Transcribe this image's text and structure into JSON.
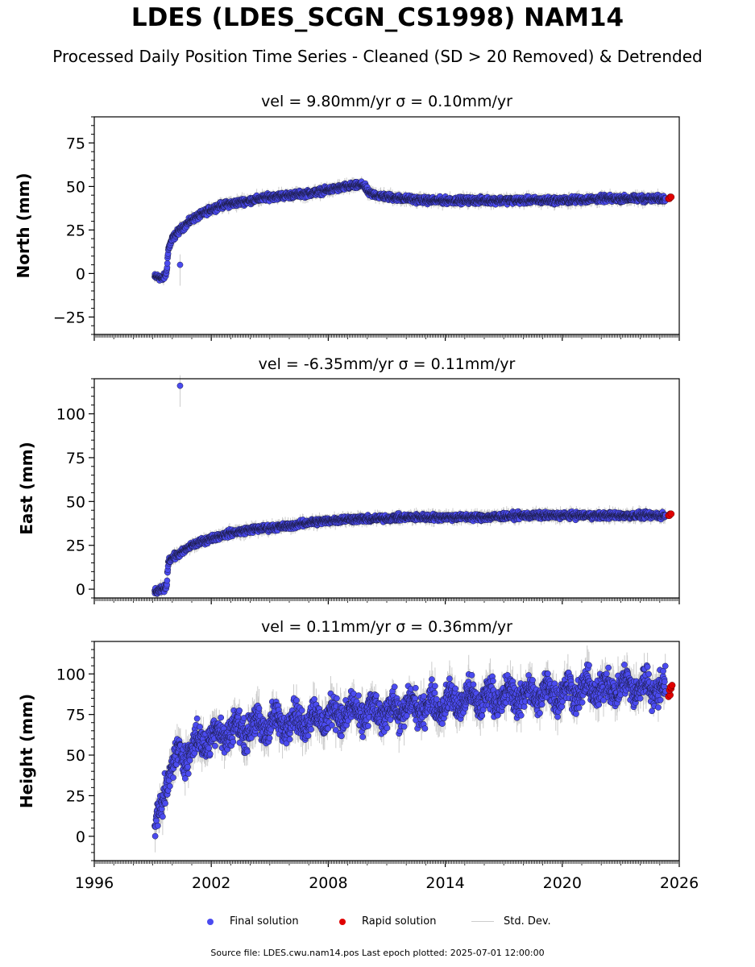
{
  "figure": {
    "title": "LDES (LDES_SCGN_CS1998) NAM14",
    "subtitle": "Processed Daily Position Time Series - Cleaned (SD > 20 Removed) & Detrended",
    "footer": "Source file: LDES.cwu.nam14.pos  Last epoch plotted: 2025-07-01 12:00:00"
  },
  "legend": {
    "final": "Final solution",
    "rapid": "Rapid solution",
    "std": "Std. Dev."
  },
  "colors": {
    "final": "#4b4bf0",
    "rapid": "#e00000",
    "std": "#cccccc",
    "marker_edge": "#1a1a40"
  },
  "chart_data": [
    {
      "type": "scatter",
      "panel": "north",
      "title": "vel = 9.80mm/yr   σ = 0.10mm/yr",
      "xlabel": "",
      "ylabel": "North (mm)",
      "xlim": [
        1996,
        2026
      ],
      "ylim": [
        -35,
        90
      ],
      "yticks": [
        -25,
        0,
        25,
        50,
        75
      ],
      "ytick_labels": [
        "−25",
        "0",
        "25",
        "50",
        "75"
      ],
      "xticks": [
        1996,
        2002,
        2008,
        2014,
        2020,
        2026
      ],
      "xtick_labels_shown": false,
      "series": [
        {
          "name": "Final solution",
          "role": "final",
          "x": [
            1999.1,
            1999.3,
            1999.5,
            1999.7,
            1999.8,
            2000.0,
            2000.3,
            2000.6,
            2001.0,
            2001.5,
            2002.0,
            2002.5,
            2003.0,
            2004.0,
            2005.0,
            2006.0,
            2007.0,
            2008.0,
            2009.0,
            2009.8,
            2010.1,
            2010.5,
            2011.0,
            2012.0,
            2013.0,
            2014.0,
            2016.0,
            2018.0,
            2020.0,
            2022.0,
            2024.0,
            2025.3
          ],
          "y": [
            -2,
            -2,
            -3,
            0,
            14,
            20,
            24,
            27,
            31,
            34,
            37,
            39,
            40,
            42,
            44,
            45,
            46,
            48,
            50,
            51,
            46,
            45,
            44,
            43,
            42,
            42,
            42,
            42,
            42,
            43,
            43,
            43
          ]
        },
        {
          "name": "Rapid solution",
          "role": "rapid",
          "x": [
            2025.45,
            2025.5
          ],
          "y": [
            43,
            43
          ]
        }
      ],
      "outliers": [
        {
          "x": 2000.4,
          "y": 5
        }
      ]
    },
    {
      "type": "scatter",
      "panel": "east",
      "title": "vel = -6.35mm/yr   σ = 0.11mm/yr",
      "xlabel": "",
      "ylabel": "East (mm)",
      "xlim": [
        1996,
        2026
      ],
      "ylim": [
        -5,
        120
      ],
      "yticks": [
        0,
        25,
        50,
        75,
        100
      ],
      "ytick_labels": [
        "0",
        "25",
        "50",
        "75",
        "100"
      ],
      "xticks": [
        1996,
        2002,
        2008,
        2014,
        2020,
        2026
      ],
      "xtick_labels_shown": false,
      "series": [
        {
          "name": "Final solution",
          "role": "final",
          "x": [
            1999.1,
            1999.3,
            1999.5,
            1999.7,
            1999.8,
            2000.0,
            2000.5,
            2001.0,
            2001.5,
            2002.0,
            2003.0,
            2004.0,
            2005.0,
            2006.0,
            2007.0,
            2008.0,
            2009.0,
            2010.0,
            2012.0,
            2014.0,
            2016.0,
            2018.0,
            2020.0,
            2022.0,
            2024.0,
            2025.3
          ],
          "y": [
            -2,
            -1,
            0,
            1,
            16,
            18,
            21,
            25,
            27,
            29,
            32,
            34,
            35,
            36,
            38,
            39,
            40,
            40,
            41,
            41,
            41,
            42,
            42,
            42,
            42,
            42
          ]
        },
        {
          "name": "Rapid solution",
          "role": "rapid",
          "x": [
            2025.45,
            2025.5
          ],
          "y": [
            42,
            42
          ]
        }
      ],
      "outliers": [
        {
          "x": 2000.4,
          "y": 116
        }
      ]
    },
    {
      "type": "scatter",
      "panel": "height",
      "title": "vel = 0.11mm/yr   σ = 0.36mm/yr",
      "xlabel": "",
      "ylabel": "Height (mm)",
      "xlim": [
        1996,
        2026
      ],
      "ylim": [
        -15,
        120
      ],
      "yticks": [
        0,
        25,
        50,
        75,
        100
      ],
      "ytick_labels": [
        "0",
        "25",
        "50",
        "75",
        "100"
      ],
      "xticks": [
        1996,
        2002,
        2008,
        2014,
        2020,
        2026
      ],
      "xtick_labels": [
        "1996",
        "2002",
        "2008",
        "2014",
        "2020",
        "2026"
      ],
      "xtick_labels_shown": true,
      "series": [
        {
          "name": "Final solution",
          "role": "final",
          "x": [
            1999.1,
            1999.2,
            1999.4,
            1999.6,
            1999.8,
            2000.0,
            2000.5,
            2001.0,
            2001.5,
            2002.0,
            2003.0,
            2004.0,
            2005.0,
            2006.0,
            2007.0,
            2008.0,
            2009.0,
            2010.0,
            2011.0,
            2012.0,
            2013.0,
            2014.0,
            2015.0,
            2016.0,
            2017.0,
            2018.0,
            2019.0,
            2020.0,
            2021.0,
            2022.0,
            2023.0,
            2024.0,
            2025.0,
            2025.3
          ],
          "y": [
            0,
            8,
            18,
            28,
            38,
            44,
            50,
            55,
            58,
            62,
            65,
            67,
            69,
            71,
            72,
            74,
            76,
            76,
            77,
            79,
            80,
            82,
            84,
            85,
            86,
            87,
            88,
            89,
            90,
            91,
            92,
            92,
            92,
            90
          ]
        },
        {
          "name": "Rapid solution",
          "role": "rapid",
          "x": [
            2025.45,
            2025.5,
            2025.55
          ],
          "y": [
            86,
            90,
            92
          ]
        }
      ],
      "noise_amplitude": 8
    }
  ]
}
